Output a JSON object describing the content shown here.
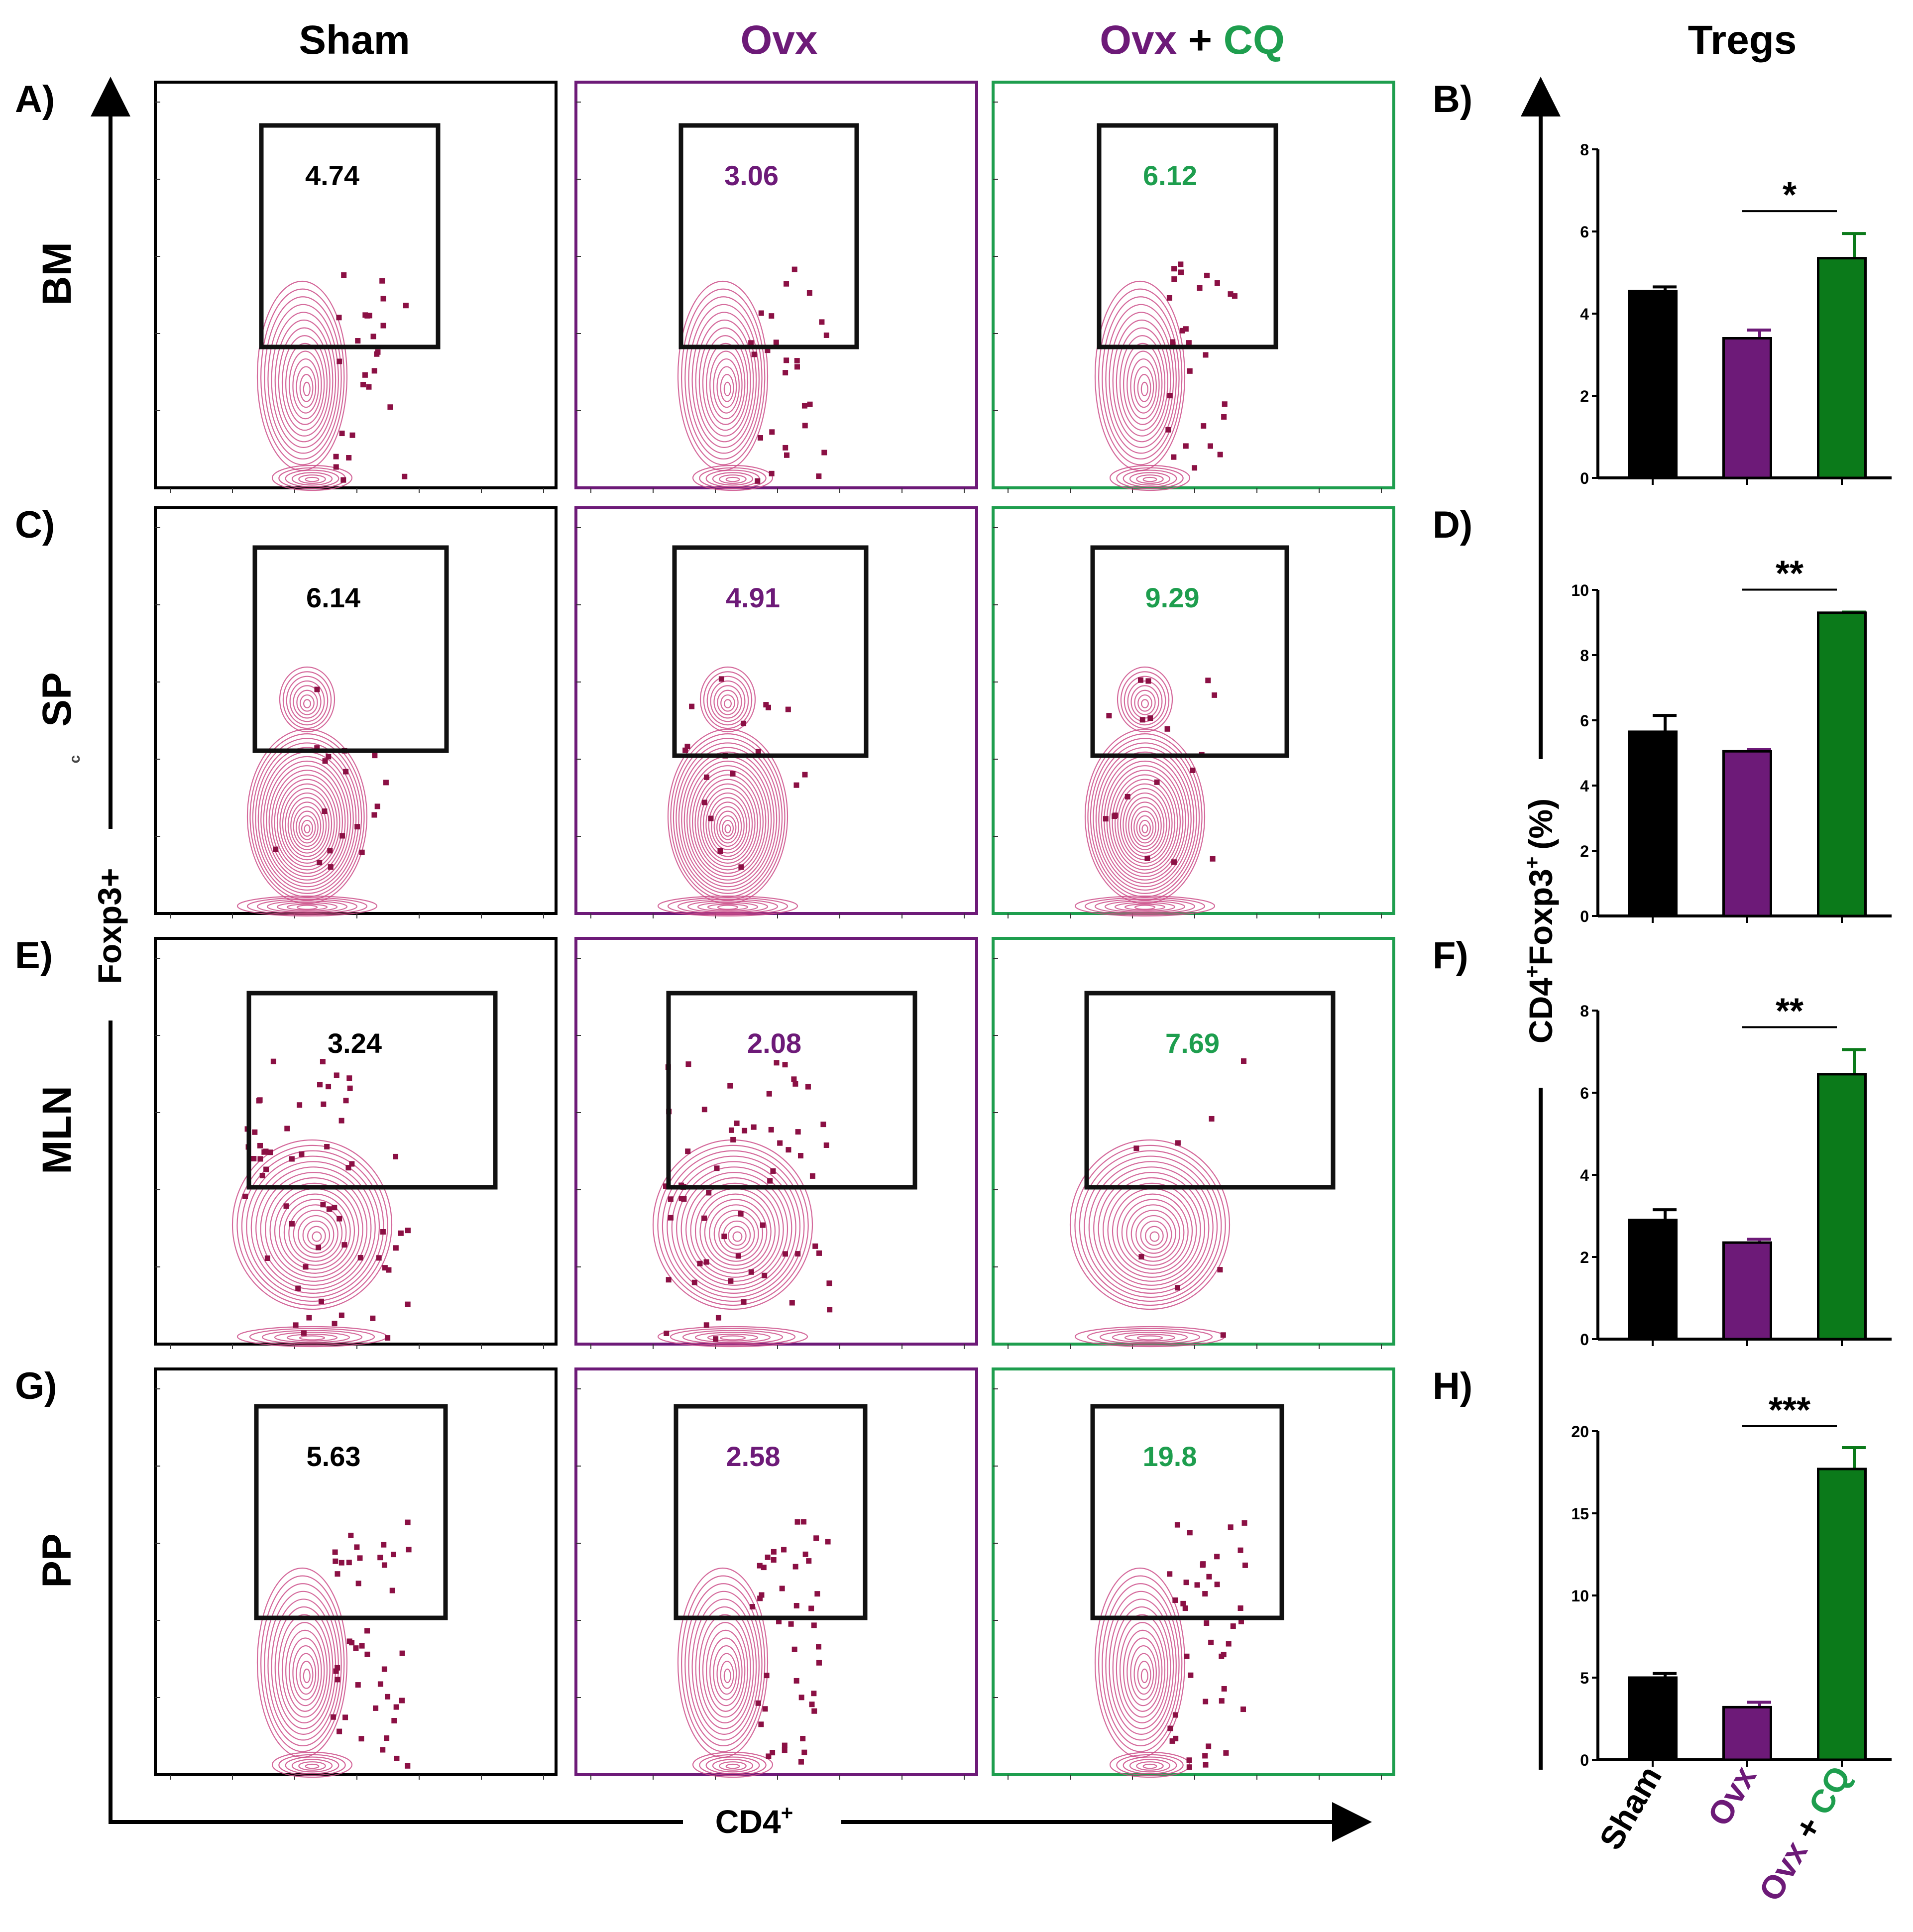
{
  "colors": {
    "sham": "#000000",
    "ovx": "#6d1a78",
    "cq": "#1e9e4e",
    "bar_cq": "#0b7a1a",
    "contour": "#cc4f8a",
    "dots": "#8b1044",
    "box": "#111111"
  },
  "headers": {
    "sham": "Sham",
    "ovx": "Ovx",
    "ovx_cq_part1": "Ovx",
    "plus": "+",
    "ovx_cq_part2": "CQ",
    "tregs": "Tregs"
  },
  "axes": {
    "y_label": "Foxp3+",
    "x_label": "CD4",
    "x_label_sup": "+",
    "bar_y_label_a": "CD4",
    "bar_y_label_b": "Foxp3",
    "bar_y_label_c": "(%)",
    "stray_mark": "c"
  },
  "bar_categories": [
    "Sham",
    "Ovx",
    "Ovx + CQ"
  ],
  "rows": [
    {
      "tissue": "BM",
      "left_letter": "A)",
      "right_letter": "B)",
      "values": [
        "4.74",
        "3.06",
        "6.12"
      ]
    },
    {
      "tissue": "SP",
      "left_letter": "C)",
      "right_letter": "D)",
      "values": [
        "6.14",
        "4.91",
        "9.29"
      ]
    },
    {
      "tissue": "MLN",
      "left_letter": "E)",
      "right_letter": "F)",
      "values": [
        "3.24",
        "2.08",
        "7.69"
      ]
    },
    {
      "tissue": "PP",
      "left_letter": "G)",
      "right_letter": "H)",
      "values": [
        "5.63",
        "2.58",
        "19.8"
      ]
    }
  ],
  "chart_data": [
    {
      "type": "bar",
      "panel": "B)",
      "categories": [
        "Sham",
        "Ovx",
        "Ovx + CQ"
      ],
      "values": [
        4.55,
        3.4,
        5.35
      ],
      "errors": [
        0.1,
        0.2,
        0.6
      ],
      "ylim": [
        0,
        8
      ],
      "yticks": [
        0,
        2,
        4,
        6,
        8
      ],
      "significance": "*",
      "significance_between": [
        "Ovx",
        "Ovx + CQ"
      ],
      "ylabel": "CD4+Foxp3+ (%)"
    },
    {
      "type": "bar",
      "panel": "D)",
      "categories": [
        "Sham",
        "Ovx",
        "Ovx + CQ"
      ],
      "values": [
        5.65,
        5.05,
        9.3
      ],
      "errors": [
        0.5,
        0.05,
        0.02
      ],
      "ylim": [
        0,
        10
      ],
      "yticks": [
        0,
        2,
        4,
        6,
        8,
        10
      ],
      "significance": "**",
      "significance_between": [
        "Ovx",
        "Ovx + CQ"
      ],
      "ylabel": "CD4+Foxp3+ (%)"
    },
    {
      "type": "bar",
      "panel": "F)",
      "categories": [
        "Sham",
        "Ovx",
        "Ovx + CQ"
      ],
      "values": [
        2.9,
        2.35,
        6.45
      ],
      "errors": [
        0.25,
        0.08,
        0.6
      ],
      "ylim": [
        0,
        8
      ],
      "yticks": [
        0,
        2,
        4,
        6,
        8
      ],
      "significance": "**",
      "significance_between": [
        "Ovx",
        "Ovx + CQ"
      ],
      "ylabel": "CD4+Foxp3+ (%)"
    },
    {
      "type": "bar",
      "panel": "H)",
      "categories": [
        "Sham",
        "Ovx",
        "Ovx + CQ"
      ],
      "values": [
        5.0,
        3.2,
        17.7
      ],
      "errors": [
        0.25,
        0.3,
        1.3
      ],
      "ylim": [
        0,
        20
      ],
      "yticks": [
        0,
        5,
        10,
        15,
        20
      ],
      "significance": "***",
      "significance_between": [
        "Ovx",
        "Ovx + CQ"
      ],
      "ylabel": "CD4+Foxp3+ (%)"
    }
  ]
}
